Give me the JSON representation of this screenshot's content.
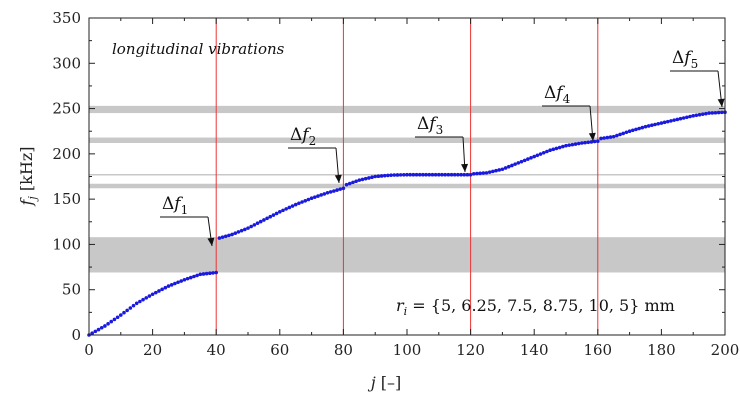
{
  "chart_data": {
    "type": "scatter",
    "title": "",
    "xlabel": "j [–]",
    "ylabel": "f_j [kHz]",
    "xlim": [
      0,
      200
    ],
    "ylim": [
      0,
      350
    ],
    "xticks": [
      0,
      20,
      40,
      60,
      80,
      100,
      120,
      140,
      160,
      180,
      200
    ],
    "yticks": [
      0,
      50,
      100,
      150,
      200,
      250,
      300,
      350
    ],
    "grid": false,
    "legend": "none",
    "annotation_note": "longitudinal vibrations",
    "parameter_text": "r_i = {5, 6.25, 7.5, 8.75, 10, 5} mm",
    "series": [
      {
        "color": "#1a1adf",
        "x": [
          0,
          5,
          10,
          15,
          20,
          25,
          30,
          35,
          40,
          41,
          45,
          50,
          55,
          60,
          65,
          70,
          75,
          80,
          81,
          85,
          90,
          95,
          100,
          105,
          110,
          115,
          120,
          121,
          125,
          130,
          135,
          140,
          145,
          150,
          155,
          160,
          161,
          165,
          170,
          175,
          180,
          185,
          190,
          195,
          200
        ],
        "y": [
          0,
          10,
          22,
          35,
          45,
          54,
          61,
          67,
          69,
          107,
          111,
          118,
          127,
          136,
          144,
          151,
          157,
          162,
          166,
          171,
          175,
          176.5,
          177,
          177,
          177,
          177,
          177,
          178,
          179,
          183,
          190,
          197,
          204,
          209,
          212,
          214,
          217,
          219,
          225,
          230,
          234,
          238,
          242,
          245,
          246
        ]
      }
    ],
    "interface_lines": {
      "color": "#ee3333",
      "x": [
        40,
        80,
        120,
        160,
        200
      ]
    },
    "gap_bands": {
      "color": "#c8c8c8",
      "ranges": [
        [
          69,
          108
        ],
        [
          162,
          167
        ],
        [
          212,
          218
        ],
        [
          245,
          253
        ]
      ]
    },
    "reference_line": {
      "color": "#c8c8c8",
      "y": 177
    },
    "annotations": [
      {
        "label": "Δf",
        "sub": "1",
        "x": 40,
        "y": 88
      },
      {
        "label": "Δf",
        "sub": "2",
        "x": 80,
        "y": 164
      },
      {
        "label": "Δf",
        "sub": "3",
        "x": 120,
        "y": 177
      },
      {
        "label": "Δf",
        "sub": "4",
        "x": 160,
        "y": 215
      },
      {
        "label": "Δf",
        "sub": "5",
        "x": 200,
        "y": 249
      }
    ]
  }
}
